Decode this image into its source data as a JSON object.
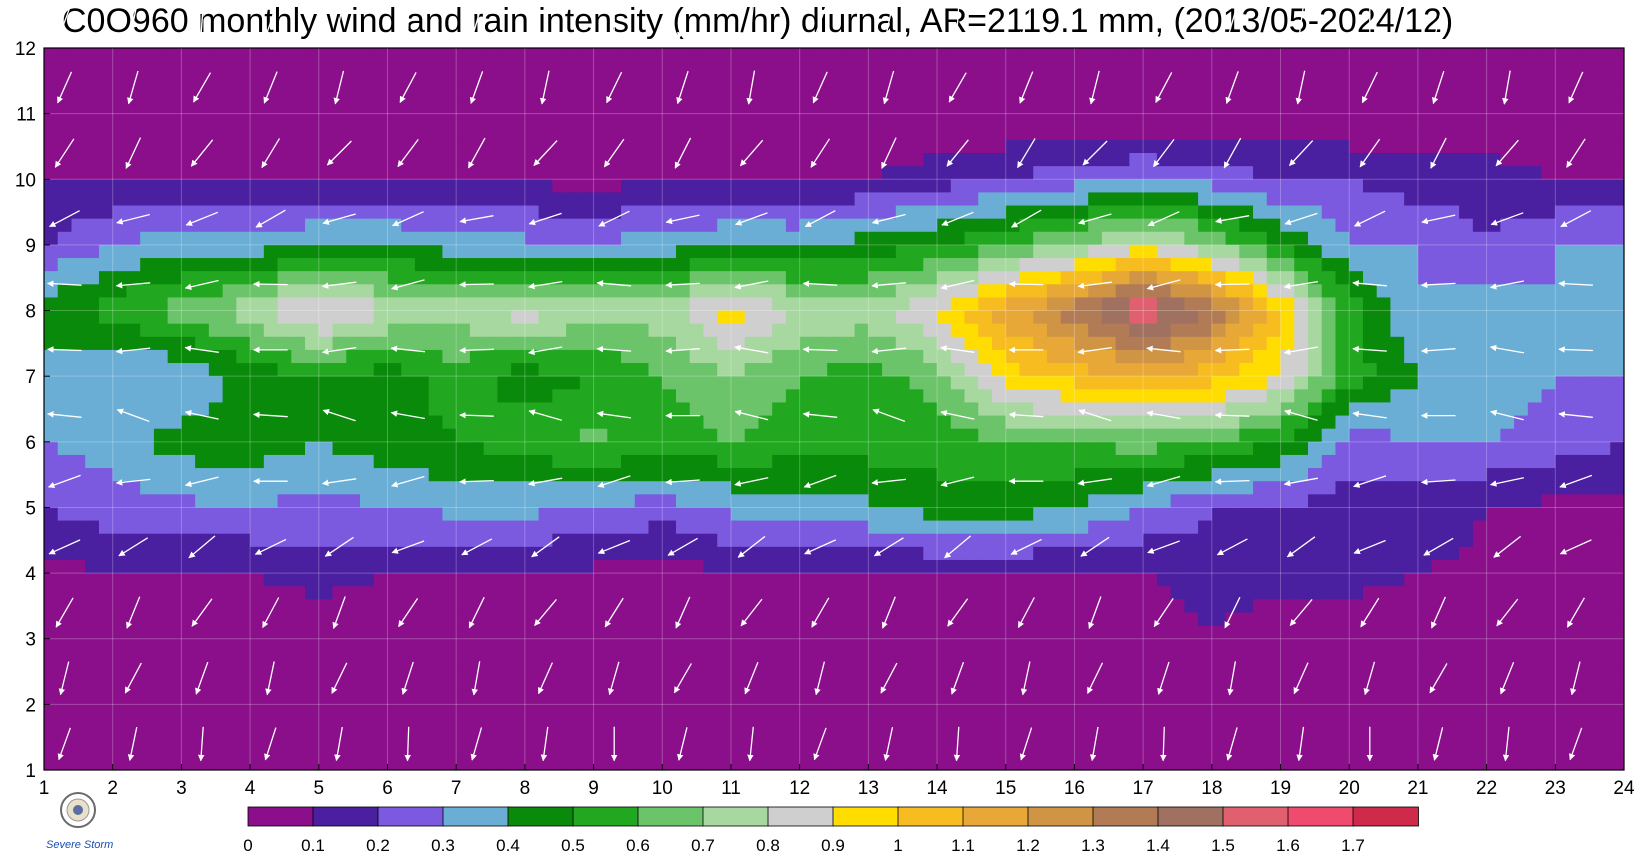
{
  "title": "C0O960 monthly wind and rain intensity (mm/hr) diurnal, AR=2119.1 mm, (2013/05-2024/12)",
  "logo_text": "Severe Storm Lab.",
  "chart_data": {
    "type": "heatmap",
    "subtype": "filled-contour with wind vectors",
    "x_axis": {
      "range": [
        1,
        24
      ],
      "ticks": [
        1,
        2,
        3,
        4,
        5,
        6,
        7,
        8,
        9,
        10,
        11,
        12,
        13,
        14,
        15,
        16,
        17,
        18,
        19,
        20,
        21,
        22,
        23,
        24
      ]
    },
    "y_axis": {
      "range": [
        1,
        12
      ],
      "ticks": [
        1,
        2,
        3,
        4,
        5,
        6,
        7,
        8,
        9,
        10,
        11,
        12
      ]
    },
    "grid": true,
    "colorbar": {
      "placement": "bottom",
      "levels": [
        "0",
        "0.1",
        "0.2",
        "0.3",
        "0.4",
        "0.5",
        "0.6",
        "0.7",
        "0.8",
        "0.9",
        "1",
        "1.1",
        "1.2",
        "1.3",
        "1.4",
        "1.5",
        "1.6",
        "1.7"
      ],
      "colors": [
        "#8b0f8b",
        "#4a1fa0",
        "#7b5ae0",
        "#6aaed6",
        "#0a8a0a",
        "#22a820",
        "#6cc46a",
        "#a6d8a0",
        "#cfcfcf",
        "#ffdd00",
        "#f7bc20",
        "#e8a838",
        "#cf9545",
        "#b07b55",
        "#a07060",
        "#e06070",
        "#f04a6e",
        "#d02a4a"
      ]
    },
    "contour_levels": [
      0.1,
      0.2,
      0.3,
      0.4,
      0.5,
      0.6,
      0.7,
      0.8,
      0.9,
      1.0,
      1.1,
      1.2,
      1.3,
      1.4,
      1.5,
      1.6
    ],
    "peak": {
      "x": 17.3,
      "y": 8.1,
      "value": 1.6
    },
    "rain_rows": [
      {
        "month": 1,
        "values": [
          0,
          0,
          0,
          0,
          0,
          0,
          0,
          0,
          0,
          0,
          0,
          0,
          0,
          0,
          0,
          0,
          0,
          0,
          0,
          0,
          0,
          0,
          0,
          0
        ]
      },
      {
        "month": 2,
        "values": [
          0,
          0,
          0,
          0,
          0,
          0,
          0,
          0,
          0,
          0,
          0,
          0,
          0,
          0,
          0,
          0,
          0,
          0,
          0,
          0,
          0,
          0,
          0,
          0
        ]
      },
      {
        "month": 3,
        "values": [
          0,
          0,
          0,
          0,
          0,
          0,
          0,
          0,
          0,
          0,
          0,
          0,
          0,
          0,
          0,
          0,
          0,
          0.1,
          0,
          0,
          0,
          0,
          0,
          0
        ]
      },
      {
        "month": 4,
        "values": [
          0.05,
          0.1,
          0.08,
          0.1,
          0.15,
          0.1,
          0.08,
          0.08,
          0.08,
          0.05,
          0.1,
          0.1,
          0.1,
          0.1,
          0.1,
          0.1,
          0.1,
          0.15,
          0.15,
          0.15,
          0.1,
          0.08,
          0.05,
          0.05
        ]
      },
      {
        "month": 5,
        "values": [
          0.2,
          0.25,
          0.28,
          0.3,
          0.25,
          0.3,
          0.33,
          0.33,
          0.3,
          0.25,
          0.32,
          0.35,
          0.38,
          0.45,
          0.45,
          0.4,
          0.3,
          0.2,
          0.2,
          0.15,
          0.15,
          0.1,
          0.08,
          0.08
        ]
      },
      {
        "month": 6,
        "values": [
          0.3,
          0.35,
          0.45,
          0.45,
          0.4,
          0.45,
          0.5,
          0.55,
          0.62,
          0.55,
          0.6,
          0.55,
          0.55,
          0.55,
          0.6,
          0.6,
          0.65,
          0.6,
          0.5,
          0.25,
          0.3,
          0.3,
          0.25,
          0.2
        ]
      },
      {
        "month": 7,
        "values": [
          0.35,
          0.3,
          0.3,
          0.45,
          0.5,
          0.45,
          0.55,
          0.45,
          0.5,
          0.6,
          0.7,
          0.6,
          0.55,
          0.65,
          0.95,
          1.05,
          1.1,
          1.05,
          0.9,
          0.55,
          0.4,
          0.35,
          0.3,
          0.3
        ]
      },
      {
        "month": 8,
        "values": [
          0.45,
          0.55,
          0.65,
          0.75,
          0.95,
          0.8,
          0.75,
          0.85,
          0.75,
          0.75,
          0.95,
          0.8,
          0.75,
          0.9,
          1.15,
          1.35,
          1.6,
          1.4,
          1.0,
          0.55,
          0.3,
          0.35,
          0.3,
          0.4
        ]
      },
      {
        "month": 9,
        "values": [
          0.2,
          0.3,
          0.35,
          0.35,
          0.4,
          0.4,
          0.35,
          0.32,
          0.3,
          0.35,
          0.4,
          0.38,
          0.45,
          0.5,
          0.6,
          0.7,
          0.85,
          0.7,
          0.5,
          0.3,
          0.3,
          0.2,
          0.3,
          0.3
        ]
      },
      {
        "month": 10,
        "values": [
          0.1,
          0.1,
          0.1,
          0.1,
          0.1,
          0.1,
          0.1,
          0.1,
          0.05,
          0.1,
          0.1,
          0.1,
          0.1,
          0.15,
          0.2,
          0.25,
          0.3,
          0.25,
          0.2,
          0.2,
          0.15,
          0.15,
          0.1,
          0.1
        ]
      },
      {
        "month": 11,
        "values": [
          0,
          0,
          0,
          0,
          0,
          0,
          0,
          0,
          0,
          0,
          0,
          0,
          0,
          0,
          0,
          0,
          0,
          0,
          0,
          0,
          0,
          0,
          0,
          0
        ]
      },
      {
        "month": 12,
        "values": [
          0,
          0,
          0,
          0,
          0,
          0,
          0,
          0,
          0,
          0,
          0,
          0,
          0,
          0,
          0,
          0,
          0,
          0,
          0,
          0,
          0,
          0,
          0,
          0
        ]
      }
    ],
    "wind_direction_deg_by_month": {
      "1": 190,
      "2": 200,
      "3": 210,
      "4": 240,
      "5": 260,
      "6": 280,
      "7": 270,
      "8": 265,
      "9": 250,
      "10": 215,
      "11": 200,
      "12": 190
    }
  }
}
